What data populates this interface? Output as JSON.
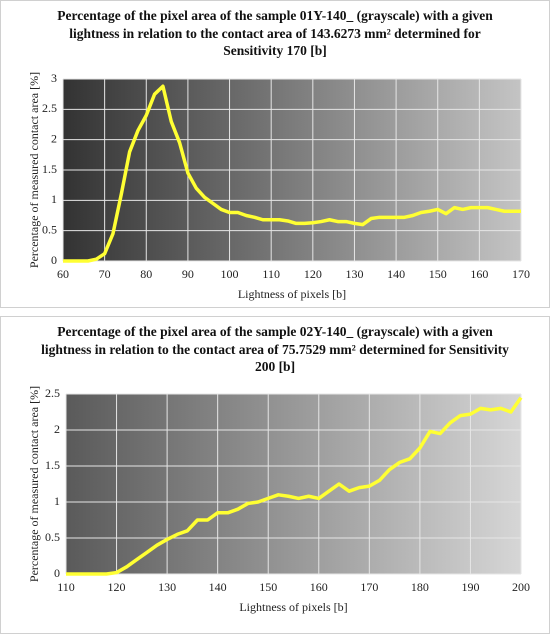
{
  "chart_data": [
    {
      "type": "line",
      "title": "Percentage of the pixel area of the sample 01Y-140_ (grayscale) with a given lightness in relation to the contact area of 143.6273 mm² determined for Sensitivity 170 [b]",
      "xlabel": "Lightness of pixels [b]",
      "ylabel": "Percentage of measured contact area [%]",
      "x": [
        60,
        62,
        64,
        66,
        68,
        70,
        72,
        74,
        76,
        78,
        80,
        82,
        84,
        86,
        88,
        90,
        92,
        94,
        96,
        98,
        100,
        102,
        104,
        106,
        108,
        110,
        112,
        114,
        116,
        118,
        120,
        122,
        124,
        126,
        128,
        130,
        132,
        134,
        136,
        138,
        140,
        142,
        144,
        146,
        148,
        150,
        152,
        154,
        156,
        158,
        160,
        162,
        164,
        166,
        168,
        170
      ],
      "values": [
        0,
        0,
        0,
        0,
        0.03,
        0.12,
        0.45,
        1.1,
        1.8,
        2.15,
        2.4,
        2.75,
        2.88,
        2.3,
        1.95,
        1.45,
        1.2,
        1.05,
        0.95,
        0.85,
        0.8,
        0.8,
        0.75,
        0.72,
        0.68,
        0.68,
        0.68,
        0.66,
        0.62,
        0.62,
        0.63,
        0.65,
        0.68,
        0.65,
        0.65,
        0.62,
        0.6,
        0.7,
        0.72,
        0.72,
        0.72,
        0.72,
        0.75,
        0.8,
        0.82,
        0.85,
        0.78,
        0.88,
        0.85,
        0.88,
        0.88,
        0.88,
        0.85,
        0.82,
        0.82,
        0.82
      ],
      "color": "#ffff33",
      "xlim": [
        60,
        170
      ],
      "xticks": [
        60,
        70,
        80,
        90,
        100,
        110,
        120,
        130,
        140,
        150,
        160,
        170
      ],
      "ylim": [
        0,
        3
      ],
      "yticks": [
        0,
        0.5,
        1,
        1.5,
        2,
        2.5,
        3
      ],
      "grid": true
    },
    {
      "type": "line",
      "title": "Percentage of the pixel area of the sample 02Y-140_ (grayscale) with a given lightness in relation to the contact area of 75.7529 mm² determined for Sensitivity 200 [b]",
      "xlabel": "Lightness of pixels [b]",
      "ylabel": "Percentage of measured contact area [%]",
      "x": [
        110,
        112,
        114,
        116,
        118,
        120,
        122,
        124,
        126,
        128,
        130,
        132,
        134,
        136,
        138,
        140,
        142,
        144,
        146,
        148,
        150,
        152,
        154,
        156,
        158,
        160,
        162,
        164,
        166,
        168,
        170,
        172,
        174,
        176,
        178,
        180,
        182,
        184,
        186,
        188,
        190,
        192,
        194,
        196,
        198,
        200
      ],
      "values": [
        0,
        0,
        0,
        0,
        0,
        0.02,
        0.1,
        0.2,
        0.3,
        0.4,
        0.48,
        0.55,
        0.6,
        0.75,
        0.75,
        0.85,
        0.85,
        0.9,
        0.98,
        1.0,
        1.05,
        1.1,
        1.08,
        1.05,
        1.08,
        1.05,
        1.15,
        1.25,
        1.15,
        1.2,
        1.22,
        1.3,
        1.45,
        1.55,
        1.6,
        1.75,
        1.98,
        1.95,
        2.1,
        2.2,
        2.22,
        2.3,
        2.28,
        2.3,
        2.25,
        2.45
      ],
      "color": "#ffff33",
      "xlim": [
        110,
        200
      ],
      "xticks": [
        110,
        120,
        130,
        140,
        150,
        160,
        170,
        180,
        190,
        200
      ],
      "ylim": [
        0,
        2.5
      ],
      "yticks": [
        0,
        0.5,
        1,
        1.5,
        2,
        2.5
      ],
      "grid": true
    }
  ]
}
